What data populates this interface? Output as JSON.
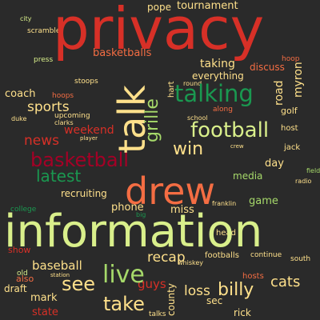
{
  "colors": {
    "background": "#2a2a2a",
    "red": "#d73027",
    "orange": "#f46d43",
    "peach": "#fdae61",
    "cream": "#fee08b",
    "yellow_green": "#d9ef8b",
    "lime": "#a6d96a",
    "green": "#1a9850",
    "crimson": "#a50026"
  },
  "words": {
    "privacy": "privacy",
    "information": "information",
    "talk": "talk",
    "drew": "drew",
    "basketball": "basketball",
    "talking": "talking",
    "football": "football",
    "live": "live",
    "billy": "billy",
    "take": "take",
    "latest": "latest",
    "grille": "grille",
    "sports": "sports",
    "news": "news",
    "see": "see",
    "win": "win",
    "cats": "cats",
    "recap": "recap",
    "loss": "loss",
    "baseball": "baseball",
    "tournament": "tournament",
    "pope": "pope",
    "basketballs": "basketballs",
    "taking": "taking",
    "everything": "everything",
    "coach": "coach",
    "weekend": "weekend",
    "recruiting": "recruiting",
    "phone": "phone",
    "miss": "miss",
    "mark": "mark",
    "day": "day",
    "game": "game",
    "road": "road",
    "myron": "myron",
    "golf": "golf",
    "discuss": "discuss",
    "county": "county",
    "sec": "sec",
    "rick": "rick",
    "state": "state",
    "footballs": "footballs",
    "hosts": "hosts",
    "media": "media",
    "guys": "guys",
    "also": "also",
    "draft": "draft",
    "show": "show",
    "hoops": "hoops",
    "upcoming": "upcoming",
    "stoops": "stoops",
    "hart": "hart",
    "round": "round",
    "along": "along",
    "host": "host",
    "jack": "jack",
    "franklin": "franklin",
    "continue": "continue",
    "south": "south",
    "head": "head",
    "press": "press",
    "scramble": "scramble",
    "city": "city",
    "talks": "talks",
    "whiskey": "whiskey",
    "duke": "duke",
    "college": "college",
    "old": "old",
    "big": "big",
    "school": "school",
    "hoop": "hoop",
    "field": "field",
    "clarks": "clarks",
    "radio": "radio",
    "station": "station",
    "crew": "crew",
    "player": "player"
  }
}
